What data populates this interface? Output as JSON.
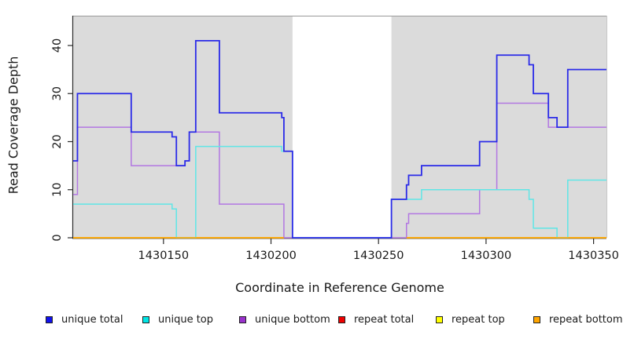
{
  "chart_data": {
    "type": "line",
    "line_style": "step",
    "title": "",
    "xlabel": "Coordinate in Reference Genome",
    "ylabel": "Read Coverage Depth",
    "xlim": [
      1430108,
      1430356
    ],
    "ylim": [
      0,
      46.2
    ],
    "xticks": [
      1430150,
      1430200,
      1430250,
      1430300,
      1430350
    ],
    "yticks": [
      0,
      10,
      20,
      30,
      40
    ],
    "grid": false,
    "legend_position": "bottom",
    "colors": {
      "plot_background": "#ffffff",
      "covered_region_fill": "#dbdbdb",
      "axis": "#2b2b2b",
      "box_top_line": "#9a9a9a",
      "box_right_line": "#c8c8c8",
      "text": "#1a1a1a"
    },
    "covered_regions": [
      [
        1430108,
        1430210
      ],
      [
        1430256,
        1430356
      ]
    ],
    "uncovered_gap": [
      1430210,
      1430256
    ],
    "series": [
      {
        "name": "unique total",
        "color": "#2b2be8",
        "legend_color": "#1111ee",
        "runs": [
          {
            "xend": 1430356,
            "steps": [
              [
                1430108,
                16
              ],
              [
                1430110,
                30
              ],
              [
                1430135,
                22
              ],
              [
                1430154,
                21
              ],
              [
                1430156,
                15
              ],
              [
                1430160,
                16
              ],
              [
                1430162,
                22
              ],
              [
                1430165,
                41
              ],
              [
                1430176,
                26
              ],
              [
                1430205,
                25
              ],
              [
                1430206,
                18
              ],
              [
                1430210,
                0
              ],
              [
                1430256,
                8
              ],
              [
                1430263,
                11
              ],
              [
                1430264,
                13
              ],
              [
                1430270,
                15
              ],
              [
                1430297,
                20
              ],
              [
                1430305,
                38
              ],
              [
                1430320,
                36
              ],
              [
                1430322,
                30
              ],
              [
                1430329,
                25
              ],
              [
                1430333,
                23
              ],
              [
                1430338,
                35
              ]
            ]
          }
        ]
      },
      {
        "name": "unique top",
        "color": "#5fe6e6",
        "legend_color": "#00e5e5",
        "runs": [
          {
            "xend": 1430356,
            "steps": [
              [
                1430108,
                7
              ],
              [
                1430154,
                6
              ],
              [
                1430156,
                0
              ],
              [
                1430165,
                19
              ],
              [
                1430205,
                18
              ],
              [
                1430210,
                0
              ],
              [
                1430256,
                8
              ],
              [
                1430270,
                10
              ],
              [
                1430320,
                8
              ],
              [
                1430322,
                2
              ],
              [
                1430333,
                0
              ],
              [
                1430338,
                12
              ]
            ]
          }
        ]
      },
      {
        "name": "unique bottom",
        "color": "#b277e2",
        "legend_color": "#9932cc",
        "runs": [
          {
            "xend": 1430356,
            "steps": [
              [
                1430108,
                9
              ],
              [
                1430110,
                23
              ],
              [
                1430135,
                15
              ],
              [
                1430160,
                16
              ],
              [
                1430162,
                22
              ],
              [
                1430176,
                7
              ],
              [
                1430206,
                0
              ],
              [
                1430263,
                3
              ],
              [
                1430264,
                5
              ],
              [
                1430297,
                10
              ],
              [
                1430305,
                28
              ],
              [
                1430329,
                23
              ]
            ]
          }
        ]
      },
      {
        "name": "repeat total",
        "color": "#ee1111",
        "legend_color": "#ee0000",
        "runs": [
          {
            "xend": 1430206,
            "steps": [
              [
                1430108,
                0
              ]
            ]
          },
          {
            "xend": 1430356,
            "steps": [
              [
                1430263,
                0
              ]
            ]
          }
        ]
      },
      {
        "name": "repeat top",
        "color": "#ffff00",
        "legend_color": "#ffff00",
        "runs": [
          {
            "xend": 1430206,
            "steps": [
              [
                1430108,
                0
              ]
            ]
          },
          {
            "xend": 1430356,
            "steps": [
              [
                1430263,
                0
              ]
            ]
          }
        ]
      },
      {
        "name": "repeat bottom",
        "color": "#ffa500",
        "legend_color": "#ffa500",
        "runs": [
          {
            "xend": 1430206,
            "steps": [
              [
                1430108,
                0
              ]
            ]
          },
          {
            "xend": 1430356,
            "steps": [
              [
                1430263,
                0
              ]
            ]
          }
        ]
      }
    ],
    "draw_order": [
      "repeat total",
      "repeat top",
      "unique bottom",
      "unique top",
      "unique total",
      "repeat bottom"
    ]
  },
  "legend": {
    "items": [
      {
        "label": "unique total",
        "color": "#1111ee"
      },
      {
        "label": "unique top",
        "color": "#00e5e5"
      },
      {
        "label": "unique bottom",
        "color": "#9932cc"
      },
      {
        "label": "repeat total",
        "color": "#ee0000"
      },
      {
        "label": "repeat top",
        "color": "#ffff00"
      },
      {
        "label": "repeat bottom",
        "color": "#ffa500"
      }
    ]
  }
}
